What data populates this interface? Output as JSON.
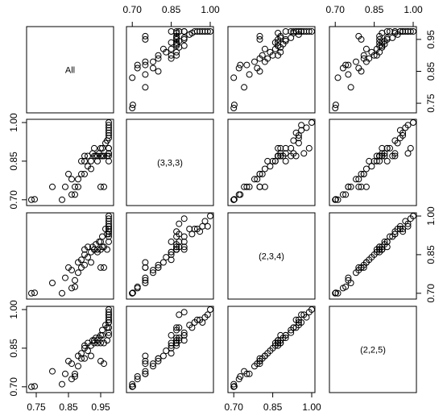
{
  "chart_data": {
    "type": "scatter",
    "variables": [
      "All",
      "(3,3,3)",
      "(2,3,4)",
      "(2,2,5)"
    ],
    "axes": {
      "All": {
        "range": [
          0.73,
          0.98
        ],
        "ticks": [
          0.75,
          0.85,
          0.95
        ],
        "tick_labels": [
          "0.75",
          "0.85",
          "0.95"
        ]
      },
      "(3,3,3)": {
        "range": [
          0.69,
          1.0
        ],
        "ticks": [
          0.7,
          0.85,
          1.0
        ],
        "tick_labels": [
          "0.70",
          "0.85",
          "1.00"
        ]
      },
      "(2,3,4)": {
        "range": [
          0.69,
          1.0
        ],
        "ticks": [
          0.7,
          0.85,
          1.0
        ],
        "tick_labels": [
          "0.70",
          "0.85",
          "1.00"
        ]
      },
      "(2,2,5)": {
        "range": [
          0.69,
          1.0
        ],
        "ticks": [
          0.7,
          0.85,
          1.0
        ],
        "tick_labels": [
          "0.70",
          "0.85",
          "1.00"
        ]
      }
    },
    "observations": [
      [
        0.735,
        0.7,
        0.7,
        0.7
      ],
      [
        0.745,
        0.702,
        0.702,
        0.702
      ],
      [
        0.8,
        0.75,
        0.74,
        0.76
      ],
      [
        0.83,
        0.7,
        0.7,
        0.71
      ],
      [
        0.84,
        0.75,
        0.76,
        0.75
      ],
      [
        0.86,
        0.78,
        0.79,
        0.79
      ],
      [
        0.85,
        0.8,
        0.8,
        0.8
      ],
      [
        0.86,
        0.72,
        0.72,
        0.73
      ],
      [
        0.87,
        0.72,
        0.725,
        0.74
      ],
      [
        0.87,
        0.75,
        0.75,
        0.75
      ],
      [
        0.88,
        0.78,
        0.78,
        0.78
      ],
      [
        0.88,
        0.75,
        0.82,
        0.82
      ],
      [
        0.89,
        0.8,
        0.8,
        0.81
      ],
      [
        0.89,
        0.85,
        0.83,
        0.83
      ],
      [
        0.9,
        0.85,
        0.85,
        0.85
      ],
      [
        0.9,
        0.87,
        0.87,
        0.86
      ],
      [
        0.9,
        0.8,
        0.81,
        0.81
      ],
      [
        0.91,
        0.87,
        0.88,
        0.87
      ],
      [
        0.91,
        0.83,
        0.84,
        0.84
      ],
      [
        0.92,
        0.85,
        0.86,
        0.86
      ],
      [
        0.92,
        0.82,
        0.82,
        0.82
      ],
      [
        0.925,
        0.88,
        0.88,
        0.88
      ],
      [
        0.93,
        0.9,
        0.87,
        0.88
      ],
      [
        0.93,
        0.87,
        0.87,
        0.87
      ],
      [
        0.935,
        0.87,
        0.89,
        0.89
      ],
      [
        0.94,
        0.87,
        0.87,
        0.88
      ],
      [
        0.94,
        0.85,
        0.86,
        0.87
      ],
      [
        0.945,
        0.88,
        0.9,
        0.89
      ],
      [
        0.95,
        0.87,
        0.87,
        0.87
      ],
      [
        0.95,
        0.9,
        0.9,
        0.9
      ],
      [
        0.95,
        0.75,
        0.8,
        0.8
      ],
      [
        0.955,
        0.9,
        0.88,
        0.9
      ],
      [
        0.955,
        0.87,
        0.92,
        0.92
      ],
      [
        0.96,
        0.87,
        0.88,
        0.87
      ],
      [
        0.96,
        0.75,
        0.8,
        0.79
      ],
      [
        0.965,
        0.92,
        0.95,
        0.94
      ],
      [
        0.97,
        0.87,
        0.87,
        0.88
      ],
      [
        0.97,
        0.93,
        0.93,
        0.93
      ],
      [
        0.975,
        0.94,
        0.95,
        0.95
      ],
      [
        0.975,
        0.88,
        0.93,
        0.93
      ],
      [
        0.975,
        0.9,
        0.92,
        0.91
      ],
      [
        0.975,
        0.95,
        0.95,
        0.96
      ],
      [
        0.975,
        0.97,
        0.96,
        0.95
      ],
      [
        0.975,
        0.98,
        0.98,
        0.97
      ],
      [
        0.975,
        0.99,
        0.96,
        0.98
      ],
      [
        0.975,
        0.96,
        0.94,
        0.96
      ],
      [
        0.975,
        1.0,
        1.0,
        1.0
      ],
      [
        0.975,
        0.85,
        0.9,
        0.9
      ],
      [
        0.975,
        0.87,
        0.94,
        0.93
      ],
      [
        0.975,
        0.88,
        0.97,
        0.98
      ],
      [
        0.975,
        0.9,
        0.99,
        0.99
      ]
    ],
    "grid": false,
    "legend": "none"
  }
}
